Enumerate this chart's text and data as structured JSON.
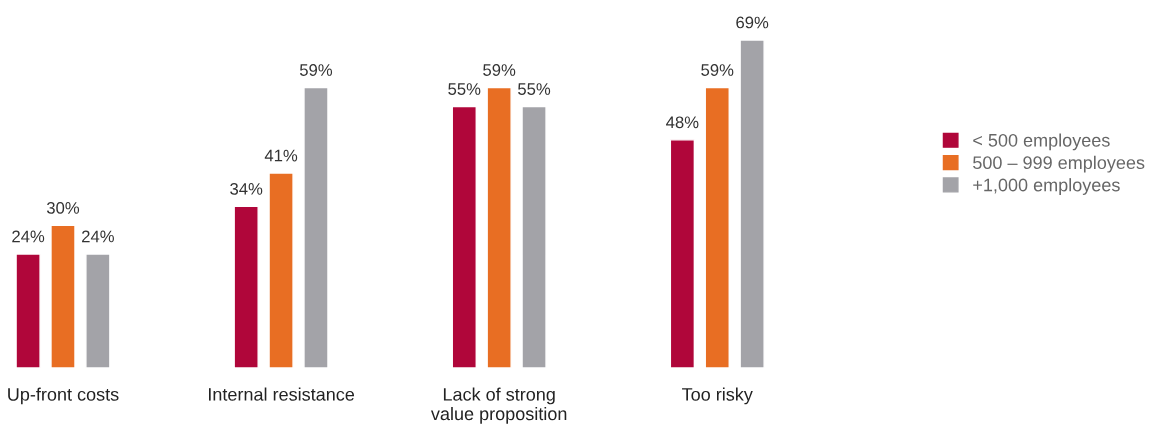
{
  "chart_data": {
    "type": "bar",
    "categories": [
      "Up-front costs",
      "Internal resistance",
      "Lack of strong\nvalue proposition",
      "Too risky"
    ],
    "series": [
      {
        "name": "< 500 employees",
        "color": "#b0063a",
        "values": [
          24,
          34,
          55,
          48
        ],
        "value_labels": [
          "24%",
          "34%",
          "55%",
          "48%"
        ]
      },
      {
        "name": "500 – 999 employees",
        "color": "#e86e23",
        "values": [
          30,
          41,
          59,
          59
        ],
        "value_labels": [
          "30%",
          "41%",
          "59%",
          "59%"
        ]
      },
      {
        "name": "+1,000 employees",
        "color": "#a3a3a8",
        "values": [
          24,
          59,
          55,
          69
        ],
        "value_labels": [
          "24%",
          "59%",
          "55%",
          "69%"
        ]
      }
    ],
    "legend": "right",
    "grid": false
  }
}
